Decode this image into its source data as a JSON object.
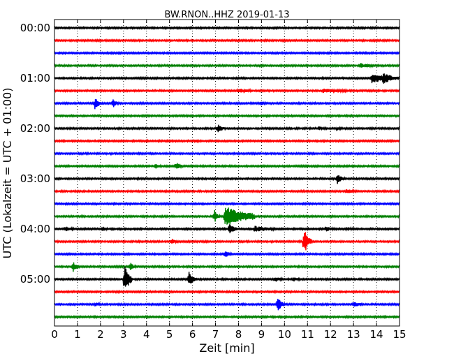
{
  "chart_data": {
    "type": "line",
    "title": "BW.RNON..HHZ 2019-01-13",
    "xlabel": "Zeit  [min]",
    "ylabel": "UTC (Lokalzeit = UTC + 01:00)",
    "xlim": [
      0,
      15
    ],
    "x_ticks": [
      "0",
      "1",
      "2",
      "3",
      "4",
      "5",
      "6",
      "7",
      "8",
      "9",
      "10",
      "11",
      "12",
      "13",
      "14",
      "15"
    ],
    "y_tick_labels": [
      "00:00",
      "01:00",
      "02:00",
      "03:00",
      "04:00",
      "05:00"
    ],
    "grid": "vertical dotted",
    "trace_colors": [
      "#000000",
      "#ff0000",
      "#0000ff",
      "#008000"
    ],
    "series": [
      {
        "row": 0,
        "offset_utc": "00:00",
        "events": []
      },
      {
        "row": 1,
        "offset_utc": "00:15",
        "events": []
      },
      {
        "row": 2,
        "offset_utc": "00:30",
        "events": []
      },
      {
        "row": 3,
        "offset_utc": "00:45",
        "events": [
          {
            "t": 13.3,
            "amp": 0.15,
            "dur": 0.3
          }
        ]
      },
      {
        "row": 4,
        "offset_utc": "01:00",
        "events": [
          {
            "t": 13.8,
            "amp": 0.35,
            "dur": 0.7
          },
          {
            "t": 14.3,
            "amp": 0.3,
            "dur": 0.2
          }
        ]
      },
      {
        "row": 5,
        "offset_utc": "01:15",
        "events": [
          {
            "t": 8.0,
            "amp": 0.15,
            "dur": 0.3
          },
          {
            "t": 11.7,
            "amp": 0.12,
            "dur": 0.6
          }
        ]
      },
      {
        "row": 6,
        "offset_utc": "01:30",
        "events": [
          {
            "t": 1.75,
            "amp": 0.45,
            "dur": 0.15
          },
          {
            "t": 2.55,
            "amp": 0.35,
            "dur": 0.1
          },
          {
            "t": 9.0,
            "amp": 0.12,
            "dur": 0.1
          }
        ]
      },
      {
        "row": 7,
        "offset_utc": "01:45",
        "events": []
      },
      {
        "row": 8,
        "offset_utc": "02:00",
        "events": [
          {
            "t": 7.1,
            "amp": 0.3,
            "dur": 0.15
          },
          {
            "t": 11.5,
            "amp": 0.12,
            "dur": 0.1
          },
          {
            "t": 12.3,
            "amp": 0.12,
            "dur": 0.1
          }
        ]
      },
      {
        "row": 9,
        "offset_utc": "02:15",
        "events": [
          {
            "t": 6.1,
            "amp": 0.12,
            "dur": 0.1
          }
        ]
      },
      {
        "row": 10,
        "offset_utc": "02:30",
        "events": []
      },
      {
        "row": 11,
        "offset_utc": "02:45",
        "events": [
          {
            "t": 4.4,
            "amp": 0.25,
            "dur": 0.1
          },
          {
            "t": 5.3,
            "amp": 0.3,
            "dur": 0.1
          }
        ]
      },
      {
        "row": 12,
        "offset_utc": "03:00",
        "events": [
          {
            "t": 12.3,
            "amp": 0.45,
            "dur": 0.15
          }
        ]
      },
      {
        "row": 13,
        "offset_utc": "03:15",
        "events": [
          {
            "t": 12.7,
            "amp": 0.15,
            "dur": 0.2
          }
        ]
      },
      {
        "row": 14,
        "offset_utc": "03:30",
        "events": []
      },
      {
        "row": 15,
        "offset_utc": "03:45",
        "events": [
          {
            "t": 6.95,
            "amp": 0.55,
            "dur": 0.1
          },
          {
            "t": 7.4,
            "amp": 0.8,
            "dur": 0.8
          },
          {
            "t": 8.5,
            "amp": 0.12,
            "dur": 0.1
          }
        ]
      },
      {
        "row": 16,
        "offset_utc": "04:00",
        "events": [
          {
            "t": 0.5,
            "amp": 0.25,
            "dur": 0.15
          },
          {
            "t": 2.1,
            "amp": 0.15,
            "dur": 0.1
          },
          {
            "t": 7.6,
            "amp": 0.5,
            "dur": 0.15
          },
          {
            "t": 8.7,
            "amp": 0.2,
            "dur": 0.5
          },
          {
            "t": 11.8,
            "amp": 0.15,
            "dur": 0.2
          },
          {
            "t": 12.7,
            "amp": 0.12,
            "dur": 0.2
          }
        ]
      },
      {
        "row": 17,
        "offset_utc": "04:15",
        "events": [
          {
            "t": 5.1,
            "amp": 0.2,
            "dur": 0.1
          },
          {
            "t": 10.85,
            "amp": 1.1,
            "dur": 0.15
          }
        ]
      },
      {
        "row": 18,
        "offset_utc": "04:30",
        "events": [
          {
            "t": 7.4,
            "amp": 0.25,
            "dur": 0.15
          }
        ]
      },
      {
        "row": 19,
        "offset_utc": "04:45",
        "events": [
          {
            "t": 0.8,
            "amp": 0.5,
            "dur": 0.1
          },
          {
            "t": 3.3,
            "amp": 0.3,
            "dur": 0.1
          }
        ]
      },
      {
        "row": 20,
        "offset_utc": "05:00",
        "events": [
          {
            "t": 3.05,
            "amp": 1.4,
            "dur": 0.15
          },
          {
            "t": 5.85,
            "amp": 0.55,
            "dur": 0.15
          },
          {
            "t": 9.6,
            "amp": 0.2,
            "dur": 0.15
          },
          {
            "t": 10.4,
            "amp": 0.2,
            "dur": 0.1
          }
        ]
      },
      {
        "row": 21,
        "offset_utc": "05:15",
        "events": []
      },
      {
        "row": 22,
        "offset_utc": "05:30",
        "events": [
          {
            "t": 1.8,
            "amp": 0.12,
            "dur": 0.1
          },
          {
            "t": 9.7,
            "amp": 0.55,
            "dur": 0.15
          },
          {
            "t": 13.0,
            "amp": 0.2,
            "dur": 0.2
          }
        ]
      },
      {
        "row": 23,
        "offset_utc": "05:45",
        "events": []
      }
    ]
  }
}
